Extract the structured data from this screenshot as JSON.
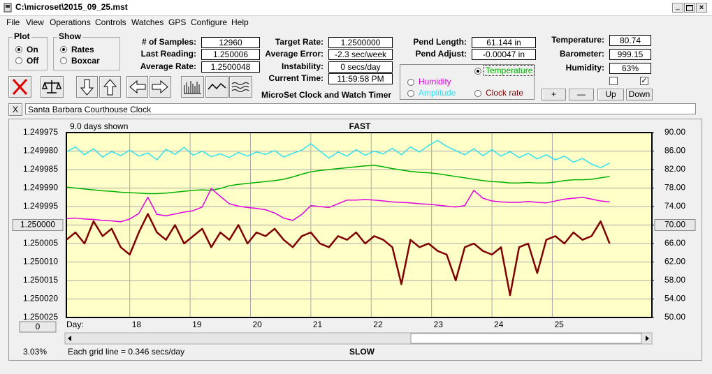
{
  "window": {
    "title": "C:\\microset\\2015_09_25.mst"
  },
  "menu": [
    "File",
    "View",
    "Operations",
    "Controls",
    "Watches",
    "GPS",
    "Configure",
    "Help"
  ],
  "plot_group": {
    "title": "Plot",
    "options": [
      "On",
      "Off"
    ],
    "checked": 0
  },
  "show_group": {
    "title": "Show",
    "options": [
      "Rates",
      "Boxcar"
    ],
    "checked": 0
  },
  "readouts": [
    {
      "label": "# of Samples:",
      "value": "12960"
    },
    {
      "label": "Last Reading:",
      "value": "1.250006"
    },
    {
      "label": "Average Rate:",
      "value": "1.2500048"
    },
    {
      "label": "Target Rate:",
      "value": "1.2500000"
    },
    {
      "label": "Average Error:",
      "value": "-2.3 sec/week"
    },
    {
      "label": "Instability:",
      "value": "0 secs/day"
    },
    {
      "label": "Current Time:",
      "value": "11:59:58 PM"
    },
    {
      "label": "Pend Length:",
      "value": "61.144 in"
    },
    {
      "label": "Pend Adjust:",
      "value": "-0.00047 in"
    },
    {
      "label": "Temperature:",
      "value": "80.74"
    },
    {
      "label": "Barometer:",
      "value": "999.15"
    },
    {
      "label": "Humidity:",
      "value": "63%"
    }
  ],
  "heading": "MicroSet Clock and Watch Timer",
  "checkboxes": [
    false,
    true
  ],
  "buttons": [
    "+",
    "—",
    "Up",
    "Down"
  ],
  "clock_name_button": "X",
  "clock_name": "Santa Barbara Courthouse Clock",
  "chart_data": {
    "type": "line",
    "span_label": "9.0 days shown",
    "top_label": "FAST",
    "bottom_label": "SLOW",
    "x_label": "Day:",
    "zoom_label": "3.03%",
    "grid_note": "Each grid line = 0.346 secs/day",
    "reset_button": "0",
    "selected_series": 0,
    "grid": true,
    "x": [
      16.95,
      17.1,
      17.25,
      17.4,
      17.55,
      17.7,
      17.85,
      18,
      18.15,
      18.3,
      18.45,
      18.6,
      18.75,
      18.9,
      19.05,
      19.2,
      19.35,
      19.5,
      19.65,
      19.8,
      19.95,
      20.1,
      20.25,
      20.4,
      20.55,
      20.7,
      20.85,
      21,
      21.15,
      21.3,
      21.45,
      21.6,
      21.75,
      21.9,
      22.05,
      22.2,
      22.35,
      22.5,
      22.65,
      22.8,
      22.95,
      23.1,
      23.25,
      23.4,
      23.55,
      23.7,
      23.85,
      24,
      24.15,
      24.3,
      24.45,
      24.6,
      24.75,
      24.9,
      25.05,
      25.2,
      25.35,
      25.5,
      25.65,
      25.8,
      25.95
    ],
    "xlim": [
      16.95,
      26.65
    ],
    "xticks": [
      18,
      19,
      20,
      21,
      22,
      23,
      24,
      25
    ],
    "ylim": [
      1.250025,
      1.249975
    ],
    "yticks": [
      1.249975,
      {
        "value": 1.24998,
        "label": "1.249980"
      },
      1.249985,
      {
        "value": 1.24999,
        "label": "1.249990"
      },
      1.249995,
      {
        "value": 1.25,
        "label": "1.250000"
      },
      1.250005,
      {
        "value": 1.25001,
        "label": "1.250010"
      },
      1.250015,
      {
        "value": 1.25002,
        "label": "1.250020"
      },
      1.250025
    ],
    "y2lim": [
      50,
      90
    ],
    "y2ticks": [
      {
        "value": 90,
        "label": "90.00"
      },
      {
        "value": 86,
        "label": "86.00"
      },
      {
        "value": 82,
        "label": "82.00"
      },
      {
        "value": 78,
        "label": "78.00"
      },
      {
        "value": 74,
        "label": "74.00"
      },
      {
        "value": 70,
        "label": "70.00"
      },
      {
        "value": 66,
        "label": "66.00"
      },
      {
        "value": 62,
        "label": "62.00"
      },
      {
        "value": 58,
        "label": "58.00"
      },
      {
        "value": 54,
        "label": "54.00"
      },
      {
        "value": 50,
        "label": "50.00"
      }
    ],
    "series": [
      {
        "name": "Temperature",
        "color": "#00b000",
        "axis": "y2",
        "values": [
          78.2,
          78.0,
          77.8,
          77.6,
          77.4,
          77.3,
          77.1,
          77.0,
          76.9,
          76.8,
          76.8,
          76.9,
          77.1,
          77.3,
          77.5,
          77.6,
          77.5,
          77.9,
          78.5,
          78.8,
          79.0,
          79.2,
          79.4,
          79.6,
          79.9,
          80.4,
          81.0,
          81.5,
          81.8,
          82.0,
          82.2,
          82.4,
          82.6,
          82.8,
          82.9,
          82.6,
          82.2,
          81.9,
          81.6,
          81.4,
          81.3,
          81.1,
          80.8,
          80.5,
          80.2,
          79.9,
          79.6,
          79.4,
          79.3,
          79.1,
          79.1,
          79.2,
          79.1,
          79.1,
          79.3,
          79.6,
          79.8,
          79.8,
          79.9,
          80.2,
          80.5
        ]
      },
      {
        "name": "Humidity",
        "color": "#e000e0",
        "axis": "y2",
        "values": [
          71.4,
          71.5,
          71.3,
          71.2,
          71.0,
          70.9,
          70.7,
          71.3,
          72.5,
          76.0,
          72.3,
          72.0,
          72.4,
          72.8,
          73.1,
          73.9,
          77.9,
          76.2,
          74.6,
          74.1,
          73.8,
          73.6,
          73.3,
          72.6,
          71.5,
          71.0,
          72.3,
          74.2,
          74.0,
          73.8,
          74.6,
          75.4,
          75.4,
          75.5,
          75.4,
          75.2,
          75.0,
          74.9,
          74.8,
          74.6,
          74.5,
          74.3,
          74.1,
          73.9,
          74.2,
          77.5,
          75.8,
          75.2,
          75.0,
          74.9,
          74.9,
          75.1,
          74.9,
          74.8,
          75.2,
          75.6,
          75.8,
          76.0,
          75.6,
          75.2,
          75.0
        ]
      },
      {
        "name": "Amplitude",
        "color": "#30e0f0",
        "axis": "y2",
        "values": [
          85.8,
          86.9,
          85.2,
          86.5,
          84.7,
          85.9,
          85.0,
          86.2,
          84.9,
          85.6,
          84.1,
          86.4,
          85.3,
          86.8,
          85.1,
          86.0,
          84.8,
          85.4,
          84.6,
          85.7,
          84.9,
          85.8,
          85.3,
          86.1,
          84.7,
          85.5,
          86.2,
          87.6,
          86.0,
          84.5,
          85.8,
          84.9,
          86.3,
          85.1,
          86.0,
          85.4,
          86.6,
          85.2,
          86.9,
          85.8,
          87.2,
          88.3,
          87.0,
          86.1,
          85.2,
          86.5,
          85.0,
          86.3,
          84.9,
          85.9,
          84.6,
          85.5,
          84.3,
          85.2,
          84.1,
          84.9,
          83.6,
          84.4,
          83.2,
          82.4,
          83.4
        ]
      },
      {
        "name": "Clock rate",
        "color": "#800000",
        "values": [
          1.250004,
          1.250002,
          1.250005,
          1.249999,
          1.250003,
          1.250001,
          1.250006,
          1.250008,
          1.250002,
          1.249997,
          1.250002,
          1.250004,
          1.25,
          1.250005,
          1.250003,
          1.250001,
          1.250006,
          1.250002,
          1.250004,
          1.25,
          1.250005,
          1.250002,
          1.250003,
          1.250001,
          1.250004,
          1.250006,
          1.250003,
          1.250002,
          1.250005,
          1.250006,
          1.250003,
          1.250004,
          1.250002,
          1.250005,
          1.250003,
          1.250004,
          1.250006,
          1.250016,
          1.250004,
          1.250006,
          1.250005,
          1.250007,
          1.250008,
          1.250015,
          1.250006,
          1.250005,
          1.250007,
          1.250008,
          1.250006,
          1.250019,
          1.250006,
          1.250005,
          1.250013,
          1.250004,
          1.250003,
          1.250005,
          1.250002,
          1.250004,
          1.250003,
          1.249999,
          1.250005
        ]
      }
    ]
  }
}
